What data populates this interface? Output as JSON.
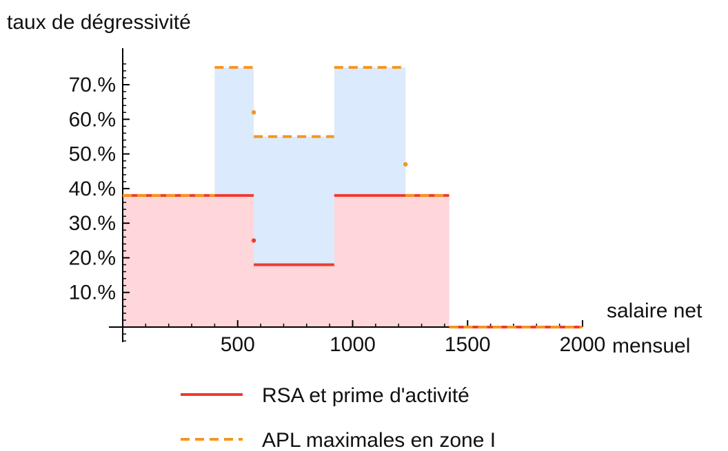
{
  "chart_data": {
    "type": "line",
    "ylabel": "taux de dégressivité",
    "xlabel_line1": "salaire net",
    "xlabel_line2": "mensuel",
    "xlim": [
      0,
      2000
    ],
    "ylim": [
      0,
      0.75
    ],
    "x_ticks": [
      {
        "value": 500,
        "label": "500"
      },
      {
        "value": 1000,
        "label": "1000"
      },
      {
        "value": 1500,
        "label": "1500"
      },
      {
        "value": 2000,
        "label": "2000"
      }
    ],
    "y_ticks": [
      {
        "value": 0.1,
        "label": "10.%"
      },
      {
        "value": 0.2,
        "label": "20.%"
      },
      {
        "value": 0.3,
        "label": "30.%"
      },
      {
        "value": 0.4,
        "label": "40.%"
      },
      {
        "value": 0.5,
        "label": "50.%"
      },
      {
        "value": 0.6,
        "label": "60.%"
      },
      {
        "value": 0.7,
        "label": "70.%"
      }
    ],
    "grid": false,
    "legend_position": "bottom",
    "series": [
      {
        "name": "RSA et prime d'activité",
        "color": "#f03a2e",
        "fill": "#ffd6da",
        "style": "solid",
        "segments": [
          {
            "x": [
              0,
              400
            ],
            "y": 0.38
          },
          {
            "x": [
              400,
              570
            ],
            "y": 0.38
          },
          {
            "x": [
              570,
              920
            ],
            "y": 0.18
          },
          {
            "x": [
              920,
              1230
            ],
            "y": 0.38
          },
          {
            "x": [
              1230,
              1420
            ],
            "y": 0.38
          },
          {
            "x": [
              1420,
              2000
            ],
            "y": 0.0
          }
        ],
        "dots": [
          {
            "x": 570,
            "y": 0.25
          }
        ]
      },
      {
        "name": "APL maximales en zone I",
        "color": "#f7941d",
        "fill": "#dbeafc",
        "style": "dashed",
        "segments": [
          {
            "x": [
              0,
              400
            ],
            "y": 0.38
          },
          {
            "x": [
              400,
              570
            ],
            "y": 0.75
          },
          {
            "x": [
              570,
              920
            ],
            "y": 0.55
          },
          {
            "x": [
              920,
              1230
            ],
            "y": 0.75
          },
          {
            "x": [
              1230,
              1420
            ],
            "y": 0.38
          },
          {
            "x": [
              1420,
              2000
            ],
            "y": 0.0
          }
        ],
        "dots": [
          {
            "x": 570,
            "y": 0.62
          },
          {
            "x": 1230,
            "y": 0.47
          }
        ]
      }
    ]
  }
}
